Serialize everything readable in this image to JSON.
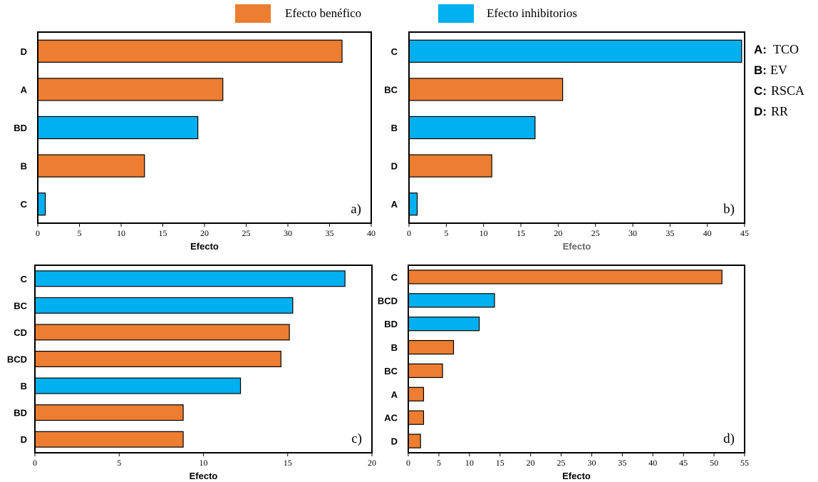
{
  "colors": {
    "beneficial": "#ED7D31",
    "inhibitory": "#00B0F0",
    "outline": "#000000"
  },
  "legend": {
    "items": [
      {
        "label": "Efecto benéfico",
        "color_key": "beneficial"
      },
      {
        "label": "Efecto inhibitorios",
        "color_key": "inhibitory"
      }
    ]
  },
  "factor_key": [
    {
      "code": "A:",
      "name": "TCO"
    },
    {
      "code": "B:",
      "name": "EV"
    },
    {
      "code": "C:",
      "name": "RSCA"
    },
    {
      "code": "D:",
      "name": "RR"
    }
  ],
  "chart_data": [
    {
      "type": "bar",
      "orientation": "horizontal",
      "panel_label": "a)",
      "xlabel": "Efecto",
      "xlim": [
        0,
        40
      ],
      "xticks": [
        0,
        5,
        10,
        15,
        20,
        25,
        30,
        35,
        40
      ],
      "categories": [
        "D",
        "A",
        "BD",
        "B",
        "C"
      ],
      "values": [
        36.5,
        22.2,
        19.2,
        12.8,
        0.9
      ],
      "effect": [
        "beneficial",
        "beneficial",
        "inhibitory",
        "beneficial",
        "inhibitory"
      ]
    },
    {
      "type": "bar",
      "orientation": "horizontal",
      "panel_label": "b)",
      "xlabel": "Efecto",
      "xlim": [
        0,
        45
      ],
      "xticks": [
        0,
        5,
        10,
        15,
        20,
        25,
        30,
        35,
        40,
        45
      ],
      "categories": [
        "C",
        "BC",
        "B",
        "D",
        "A"
      ],
      "values": [
        44.6,
        20.6,
        16.9,
        11.1,
        1.1
      ],
      "effect": [
        "inhibitory",
        "beneficial",
        "inhibitory",
        "beneficial",
        "inhibitory"
      ]
    },
    {
      "type": "bar",
      "orientation": "horizontal",
      "panel_label": "c)",
      "xlabel": "Efecto",
      "xlim": [
        0,
        20
      ],
      "xticks": [
        0,
        5,
        10,
        15,
        20
      ],
      "categories": [
        "C",
        "BC",
        "CD",
        "BCD",
        "B",
        "BD",
        "D"
      ],
      "values": [
        18.4,
        15.3,
        15.1,
        14.6,
        12.2,
        8.8,
        8.8
      ],
      "effect": [
        "inhibitory",
        "inhibitory",
        "beneficial",
        "beneficial",
        "inhibitory",
        "beneficial",
        "beneficial"
      ]
    },
    {
      "type": "bar",
      "orientation": "horizontal",
      "panel_label": "d)",
      "xlabel": "Efecto",
      "xlim": [
        0,
        55
      ],
      "xticks": [
        0,
        5,
        10,
        15,
        20,
        25,
        30,
        35,
        40,
        45,
        50,
        55
      ],
      "categories": [
        "C",
        "BCD",
        "BD",
        "B",
        "BC",
        "A",
        "AC",
        "D"
      ],
      "values": [
        51.3,
        14.1,
        11.6,
        7.4,
        5.6,
        2.5,
        2.5,
        2.0
      ],
      "effect": [
        "beneficial",
        "inhibitory",
        "inhibitory",
        "beneficial",
        "beneficial",
        "beneficial",
        "beneficial",
        "beneficial"
      ]
    }
  ]
}
